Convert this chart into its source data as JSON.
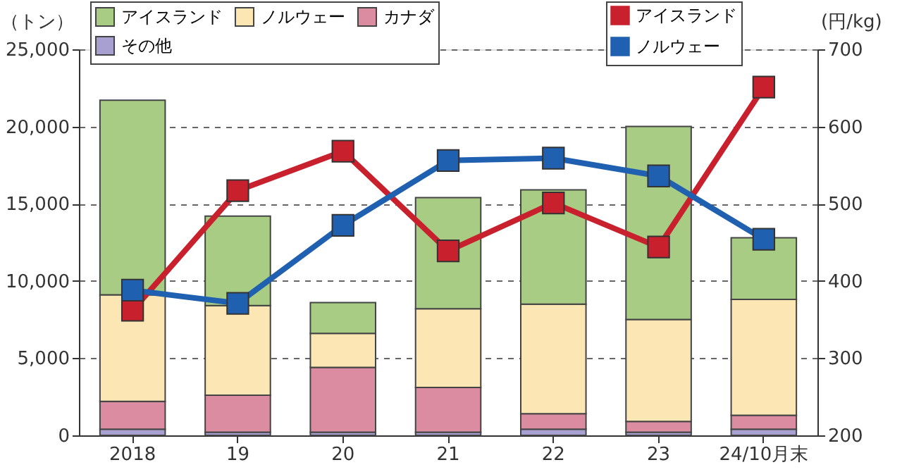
{
  "chart_data": {
    "type": "bar",
    "stacked": true,
    "ylabel": "（トン）",
    "y2label": "(円/kg)",
    "categories": [
      "2018",
      "19",
      "20",
      "21",
      "22",
      "23",
      "24/10月末"
    ],
    "series": [
      {
        "name": "その他",
        "color": "#a8a0d0",
        "values": [
          400,
          200,
          200,
          200,
          400,
          200,
          400
        ]
      },
      {
        "name": "カナダ",
        "color": "#dc8ca0",
        "values": [
          1800,
          2400,
          4200,
          2900,
          1000,
          700,
          900
        ]
      },
      {
        "name": "ノルウェー",
        "color": "#fbe6b4",
        "values": [
          6900,
          5800,
          2200,
          5100,
          7100,
          6600,
          7500
        ]
      },
      {
        "name": "アイスランド",
        "color": "#a8cc84",
        "values": [
          12600,
          5800,
          2000,
          7200,
          7400,
          12500,
          4000
        ]
      },
      {
        "name": "アイスランド",
        "type": "line",
        "axis": "y2",
        "color": "#c8202c",
        "values": [
          362,
          517,
          568,
          439,
          501,
          444,
          651
        ]
      },
      {
        "name": "ノルウェー",
        "type": "line",
        "axis": "y2",
        "color": "#2060b0",
        "values": [
          388,
          371,
          472,
          556,
          559,
          536,
          454
        ]
      }
    ],
    "ylim": [
      0,
      25000
    ],
    "yticks": [
      0,
      {
        "value": 5000,
        "label": "5,000"
      },
      {
        "value": 10000,
        "label": "10,000"
      },
      {
        "value": 15000,
        "label": "15,000"
      },
      {
        "value": 20000,
        "label": "20,000"
      },
      {
        "value": 25000,
        "label": "25,000"
      }
    ],
    "y2lim": [
      200,
      700
    ],
    "y2ticks": [
      200,
      300,
      400,
      500,
      600,
      700
    ],
    "grid": "y",
    "legend": "top",
    "marker": "square",
    "line_style": "solid"
  }
}
